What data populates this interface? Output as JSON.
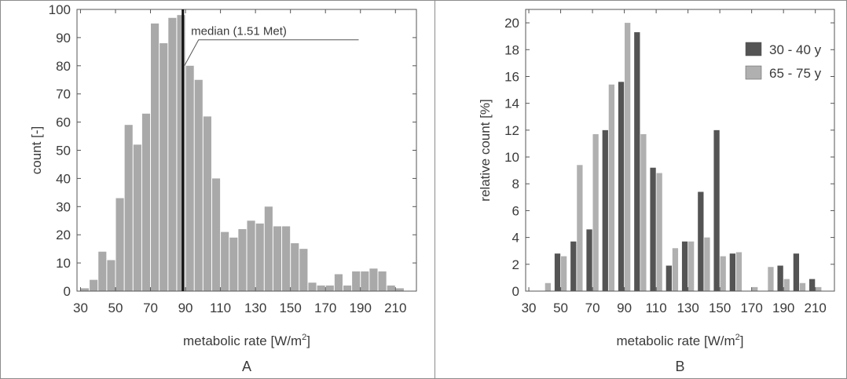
{
  "chart_data": [
    {
      "type": "bar",
      "panel_label": "A",
      "xlabel": "metabolic rate [W/m",
      "xlabel_sup": "2",
      "xlabel_close": "]",
      "ylabel": "count [-]",
      "xlim": [
        28,
        222
      ],
      "ylim": [
        0,
        100
      ],
      "xticks": [
        30,
        50,
        70,
        90,
        110,
        130,
        150,
        170,
        190,
        210
      ],
      "yticks": [
        0,
        10,
        20,
        30,
        40,
        50,
        60,
        70,
        80,
        90,
        100
      ],
      "bin_width": 5,
      "bar_color": "#a9a9a9",
      "x": [
        32.5,
        37.5,
        42.5,
        47.5,
        52.5,
        57.5,
        62.5,
        67.5,
        72.5,
        77.5,
        82.5,
        87.5,
        92.5,
        97.5,
        102.5,
        107.5,
        112.5,
        117.5,
        122.5,
        127.5,
        132.5,
        137.5,
        142.5,
        147.5,
        152.5,
        157.5,
        162.5,
        167.5,
        172.5,
        177.5,
        182.5,
        187.5,
        192.5,
        197.5,
        202.5,
        207.5,
        212.5
      ],
      "values": [
        1,
        4,
        14,
        11,
        33,
        59,
        52,
        63,
        95,
        88,
        97,
        98,
        80,
        75,
        62,
        40,
        21,
        19,
        22,
        25,
        24,
        30,
        23,
        23,
        17,
        15,
        3,
        2,
        2,
        6,
        2,
        7,
        7,
        8,
        7,
        2,
        1
      ],
      "median": {
        "value": 88.5,
        "label": "median (1.51 Met)",
        "label_x": 90.5,
        "label_y": 92,
        "leader_y": 80
      }
    },
    {
      "type": "bar",
      "panel_label": "B",
      "xlabel": "metabolic rate [W/m",
      "xlabel_sup": "2",
      "xlabel_close": "]",
      "ylabel": "relative count [%]",
      "xlim": [
        28,
        222
      ],
      "ylim": [
        0,
        21
      ],
      "xticks": [
        30,
        50,
        70,
        90,
        110,
        130,
        150,
        170,
        190,
        210
      ],
      "yticks": [
        0,
        2,
        4,
        6,
        8,
        10,
        12,
        14,
        16,
        18,
        20
      ],
      "categories": [
        40,
        50,
        60,
        70,
        80,
        90,
        100,
        110,
        120,
        130,
        140,
        150,
        160,
        170,
        180,
        190,
        200,
        210
      ],
      "legend_position": "top-right",
      "series": [
        {
          "name": "30 - 40 y",
          "color": "#545454",
          "values": [
            0,
            2.8,
            3.7,
            4.6,
            12.0,
            15.6,
            19.3,
            9.2,
            1.9,
            3.7,
            7.4,
            12.0,
            2.8,
            0,
            0,
            1.9,
            2.8,
            0.9
          ]
        },
        {
          "name": "65 - 75 y",
          "color": "#b0b0b0",
          "values": [
            0.6,
            2.6,
            9.4,
            11.7,
            15.4,
            20.0,
            11.7,
            8.8,
            3.2,
            3.7,
            4.0,
            2.6,
            2.9,
            0.3,
            1.8,
            0.9,
            0.6,
            0.3
          ]
        }
      ]
    }
  ]
}
